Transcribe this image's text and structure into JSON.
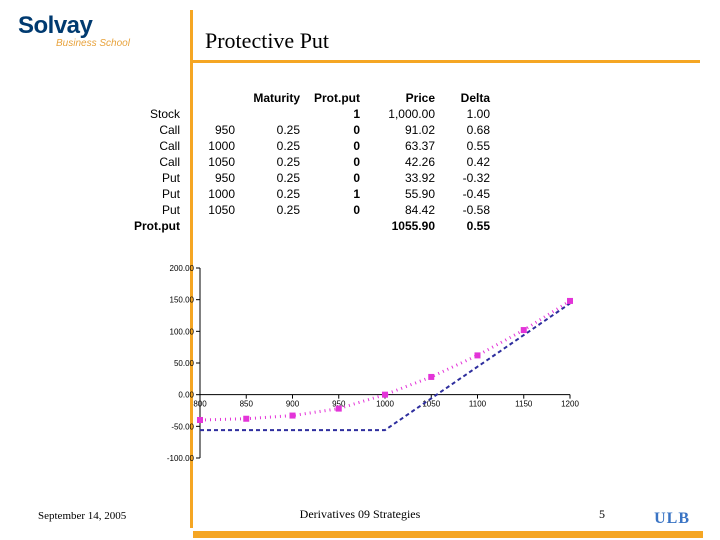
{
  "brand": {
    "logo_main": "Solvay",
    "logo_sub": "Business School",
    "logo_color_primary": "#003a70",
    "logo_color_accent": "#e8a33d",
    "accent_orange": "#f5a623"
  },
  "slide": {
    "title": "Protective Put"
  },
  "table": {
    "headers": [
      "",
      "",
      "Maturity",
      "Prot.put",
      "Price",
      "Delta"
    ],
    "rows": [
      {
        "label": "Stock",
        "k": "",
        "mat": "",
        "pp": "1",
        "price": "1,000.00",
        "delta": "1.00",
        "bold": false
      },
      {
        "label": "Call",
        "k": "950",
        "mat": "0.25",
        "pp": "0",
        "price": "91.02",
        "delta": "0.68",
        "bold": false
      },
      {
        "label": "Call",
        "k": "1000",
        "mat": "0.25",
        "pp": "0",
        "price": "63.37",
        "delta": "0.55",
        "bold": false
      },
      {
        "label": "Call",
        "k": "1050",
        "mat": "0.25",
        "pp": "0",
        "price": "42.26",
        "delta": "0.42",
        "bold": false
      },
      {
        "label": "Put",
        "k": "950",
        "mat": "0.25",
        "pp": "0",
        "price": "33.92",
        "delta": "-0.32",
        "bold": false
      },
      {
        "label": "Put",
        "k": "1000",
        "mat": "0.25",
        "pp": "1",
        "price": "55.90",
        "delta": "-0.45",
        "bold": false
      },
      {
        "label": "Put",
        "k": "1050",
        "mat": "0.25",
        "pp": "0",
        "price": "84.42",
        "delta": "-0.58",
        "bold": false
      },
      {
        "label": "Prot.put",
        "k": "",
        "mat": "",
        "pp": "",
        "price": "1055.90",
        "delta": "0.55",
        "bold": true
      }
    ]
  },
  "chart": {
    "type": "line",
    "xlim": [
      800,
      1200
    ],
    "ylim": [
      -100,
      200
    ],
    "xticks": [
      800,
      850,
      900,
      950,
      1000,
      1050,
      1100,
      1150,
      1200
    ],
    "yticks": [
      -100,
      -50,
      0,
      50,
      100,
      150,
      200
    ],
    "ytick_labels": [
      "-100.00",
      "-50.00",
      "0.00",
      "50.00",
      "100.00",
      "150.00",
      "200.00"
    ],
    "background_color": "#ffffff",
    "axis_color": "#000000",
    "tick_fontsize": 8,
    "series": [
      {
        "name": "payoff-expiry",
        "color": "#2e2e9e",
        "dash": "4,3",
        "width": 2,
        "marker": "none",
        "points": [
          {
            "x": 800,
            "y": -55.9
          },
          {
            "x": 850,
            "y": -55.9
          },
          {
            "x": 900,
            "y": -55.9
          },
          {
            "x": 950,
            "y": -55.9
          },
          {
            "x": 1000,
            "y": -55.9
          },
          {
            "x": 1050,
            "y": -5.9
          },
          {
            "x": 1100,
            "y": 44.1
          },
          {
            "x": 1150,
            "y": 94.1
          },
          {
            "x": 1200,
            "y": 144.1
          }
        ]
      },
      {
        "name": "value-now",
        "color": "#e334d8",
        "dash": "1,4",
        "width": 3,
        "marker": "square",
        "marker_size": 3,
        "points": [
          {
            "x": 800,
            "y": -40
          },
          {
            "x": 850,
            "y": -38
          },
          {
            "x": 900,
            "y": -33
          },
          {
            "x": 950,
            "y": -22
          },
          {
            "x": 1000,
            "y": 0
          },
          {
            "x": 1050,
            "y": 28
          },
          {
            "x": 1100,
            "y": 62
          },
          {
            "x": 1150,
            "y": 102
          },
          {
            "x": 1200,
            "y": 148
          }
        ]
      }
    ]
  },
  "footer": {
    "date": "September 14, 2005",
    "center": "Derivatives 09 Strategies",
    "page": "5",
    "ulb": "ULB",
    "ulb_color": "#3a74c4"
  }
}
